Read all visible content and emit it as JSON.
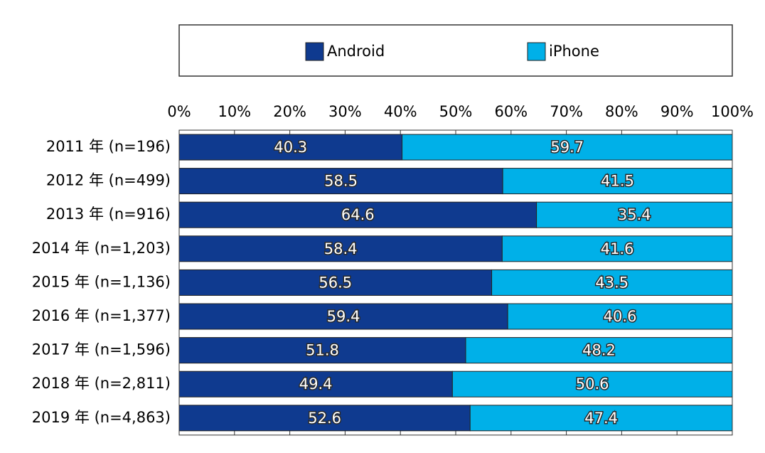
{
  "chart_data": {
    "type": "bar",
    "orientation": "horizontal",
    "stacked": true,
    "categories": [
      "2011 年 (n=196)",
      "2012 年 (n=499)",
      "2013 年 (n=916)",
      "2014 年 (n=1,203)",
      "2015 年 (n=1,136)",
      "2016 年 (n=1,377)",
      "2017 年 (n=1,596)",
      "2018 年 (n=2,811)",
      "2019 年 (n=4,863)"
    ],
    "series": [
      {
        "name": "Android",
        "color": "#0f3a8f",
        "values": [
          40.3,
          58.5,
          64.6,
          58.4,
          56.5,
          59.4,
          51.8,
          49.4,
          52.6
        ]
      },
      {
        "name": "iPhone",
        "color": "#00b0e8",
        "values": [
          59.7,
          41.5,
          35.4,
          41.6,
          43.5,
          40.6,
          48.2,
          50.6,
          47.4
        ]
      }
    ],
    "xlim": [
      0,
      100
    ],
    "xticks": [
      {
        "value": 0,
        "label": "0%"
      },
      {
        "value": 10,
        "label": "10%"
      },
      {
        "value": 20,
        "label": "20%"
      },
      {
        "value": 30,
        "label": "30%"
      },
      {
        "value": 40,
        "label": "40%"
      },
      {
        "value": 50,
        "label": "50%"
      },
      {
        "value": 60,
        "label": "60%"
      },
      {
        "value": 70,
        "label": "70%"
      },
      {
        "value": 80,
        "label": "80%"
      },
      {
        "value": 90,
        "label": "90%"
      },
      {
        "value": 100,
        "label": "100%"
      }
    ],
    "legend": "top"
  }
}
